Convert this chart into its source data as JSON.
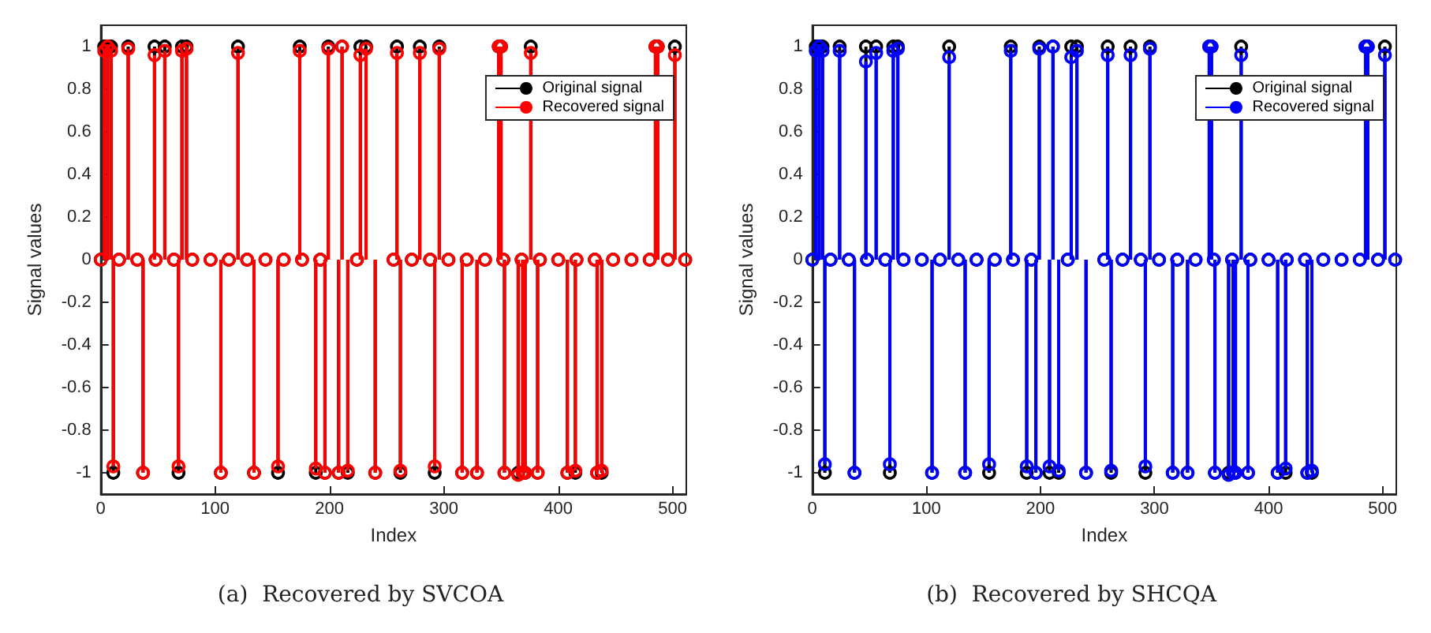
{
  "chart_data": [
    {
      "type": "lollipop",
      "title": "(a)  Recovered by SVCOA",
      "xlabel": "Index",
      "ylabel": "Signal values",
      "xlim": [
        0,
        512
      ],
      "xticks": [
        0,
        100,
        200,
        300,
        400,
        500
      ],
      "ylim": [
        -1.1,
        1.1
      ],
      "yticks": [
        -1,
        -0.8,
        -0.6,
        -0.4,
        -0.2,
        0,
        0.2,
        0.4,
        0.6,
        0.8,
        1
      ],
      "legend": "top right",
      "marker": "circle",
      "grid": false,
      "x": [
        0,
        3,
        6,
        9,
        11,
        16,
        24,
        32,
        37,
        47,
        48,
        56,
        64,
        68,
        71,
        75,
        80,
        96,
        105,
        112,
        120,
        128,
        134,
        144,
        155,
        160,
        174,
        176,
        188,
        192,
        196,
        199,
        208,
        211,
        216,
        224,
        227,
        232,
        240,
        256,
        259,
        262,
        272,
        279,
        288,
        292,
        296,
        304,
        316,
        320,
        329,
        336,
        348,
        350,
        352,
        353,
        365,
        368,
        369,
        371,
        376,
        382,
        384,
        400,
        408,
        415,
        416,
        432,
        434,
        438,
        448,
        464,
        480,
        485,
        487,
        496,
        502,
        511
      ],
      "series": [
        {
          "name": "Original signal",
          "color": "#000000",
          "values": [
            0,
            1,
            1,
            1,
            -1,
            0,
            1,
            0,
            -1,
            1,
            0,
            1,
            0,
            -1,
            1,
            1,
            0,
            0,
            -1,
            0,
            1,
            0,
            -1,
            0,
            -1,
            0,
            1,
            0,
            -1,
            0,
            -1,
            1,
            -1,
            1,
            -1,
            0,
            1,
            1,
            -1,
            0,
            1,
            -1,
            0,
            1,
            0,
            -1,
            1,
            0,
            -1,
            0,
            -1,
            0,
            1,
            1,
            0,
            -1,
            -1,
            0,
            -1,
            -1,
            1,
            -1,
            0,
            0,
            -1,
            -1,
            0,
            0,
            -1,
            -1,
            0,
            0,
            0,
            1,
            1,
            0,
            1,
            0
          ]
        },
        {
          "name": "Recovered signal",
          "color": "#ff0000",
          "values": [
            0,
            0.98,
            1,
            0.98,
            -0.97,
            0,
            0.99,
            0,
            -1,
            0.96,
            0,
            0.98,
            0,
            -0.97,
            0.98,
            0.99,
            0,
            0,
            -1,
            0,
            0.97,
            0,
            -1,
            0,
            -0.97,
            0,
            0.98,
            0,
            -0.98,
            0,
            -1,
            0.99,
            -1,
            1,
            -0.99,
            0,
            0.96,
            0.99,
            -1,
            0,
            0.97,
            -0.99,
            0,
            0.97,
            0,
            -0.97,
            0.99,
            0,
            -1,
            0,
            -1,
            0,
            1,
            1,
            0,
            -1,
            -1.01,
            0,
            -1,
            -1,
            0.97,
            -1,
            0,
            0,
            -1,
            -0.99,
            0,
            0,
            -1,
            -0.99,
            0,
            0,
            0,
            1,
            1,
            0,
            0.96,
            0
          ]
        }
      ]
    },
    {
      "type": "lollipop",
      "title": "(b)  Recovered by SHCQA",
      "xlabel": "Index",
      "ylabel": "Signal values",
      "xlim": [
        0,
        512
      ],
      "xticks": [
        0,
        100,
        200,
        300,
        400,
        500
      ],
      "ylim": [
        -1.1,
        1.1
      ],
      "yticks": [
        -1,
        -0.8,
        -0.6,
        -0.4,
        -0.2,
        0,
        0.2,
        0.4,
        0.6,
        0.8,
        1
      ],
      "legend": "top right",
      "marker": "circle",
      "grid": false,
      "x": [
        0,
        3,
        6,
        9,
        11,
        16,
        24,
        32,
        37,
        47,
        48,
        56,
        64,
        68,
        71,
        75,
        80,
        96,
        105,
        112,
        120,
        128,
        134,
        144,
        155,
        160,
        174,
        176,
        188,
        192,
        196,
        199,
        208,
        211,
        216,
        224,
        227,
        232,
        240,
        256,
        259,
        262,
        272,
        279,
        288,
        292,
        296,
        304,
        316,
        320,
        329,
        336,
        348,
        350,
        352,
        353,
        365,
        368,
        369,
        371,
        376,
        382,
        384,
        400,
        408,
        415,
        416,
        432,
        434,
        438,
        448,
        464,
        480,
        485,
        487,
        496,
        502,
        511
      ],
      "series": [
        {
          "name": "Original signal",
          "color": "#000000",
          "values": [
            0,
            1,
            1,
            1,
            -1,
            0,
            1,
            0,
            -1,
            1,
            0,
            1,
            0,
            -1,
            1,
            1,
            0,
            0,
            -1,
            0,
            1,
            0,
            -1,
            0,
            -1,
            0,
            1,
            0,
            -1,
            0,
            -1,
            1,
            -1,
            1,
            -1,
            0,
            1,
            1,
            -1,
            0,
            1,
            -1,
            0,
            1,
            0,
            -1,
            1,
            0,
            -1,
            0,
            -1,
            0,
            1,
            1,
            0,
            -1,
            -1,
            0,
            -1,
            -1,
            1,
            -1,
            0,
            0,
            -1,
            -1,
            0,
            0,
            -1,
            -1,
            0,
            0,
            0,
            1,
            1,
            0,
            1,
            0
          ]
        },
        {
          "name": "Recovered signal",
          "color": "#0000ff",
          "values": [
            0,
            0.98,
            1,
            0.98,
            -0.96,
            0,
            0.98,
            0,
            -1,
            0.93,
            0,
            0.97,
            0,
            -0.96,
            0.98,
            0.99,
            0,
            0,
            -1,
            0,
            0.95,
            0,
            -1,
            0,
            -0.96,
            0,
            0.98,
            0,
            -0.97,
            0,
            -1,
            0.99,
            -0.97,
            1,
            -0.99,
            0,
            0.95,
            0.98,
            -1,
            0,
            0.96,
            -0.99,
            0,
            0.96,
            0,
            -0.97,
            0.99,
            0,
            -1,
            0,
            -1,
            0,
            1,
            1,
            0,
            -1,
            -1.01,
            0,
            -1,
            -1,
            0.96,
            -1,
            0,
            0,
            -1,
            -0.98,
            0,
            0,
            -1,
            -0.99,
            0,
            0,
            0,
            1,
            1,
            0,
            0.96,
            0
          ]
        }
      ]
    }
  ]
}
